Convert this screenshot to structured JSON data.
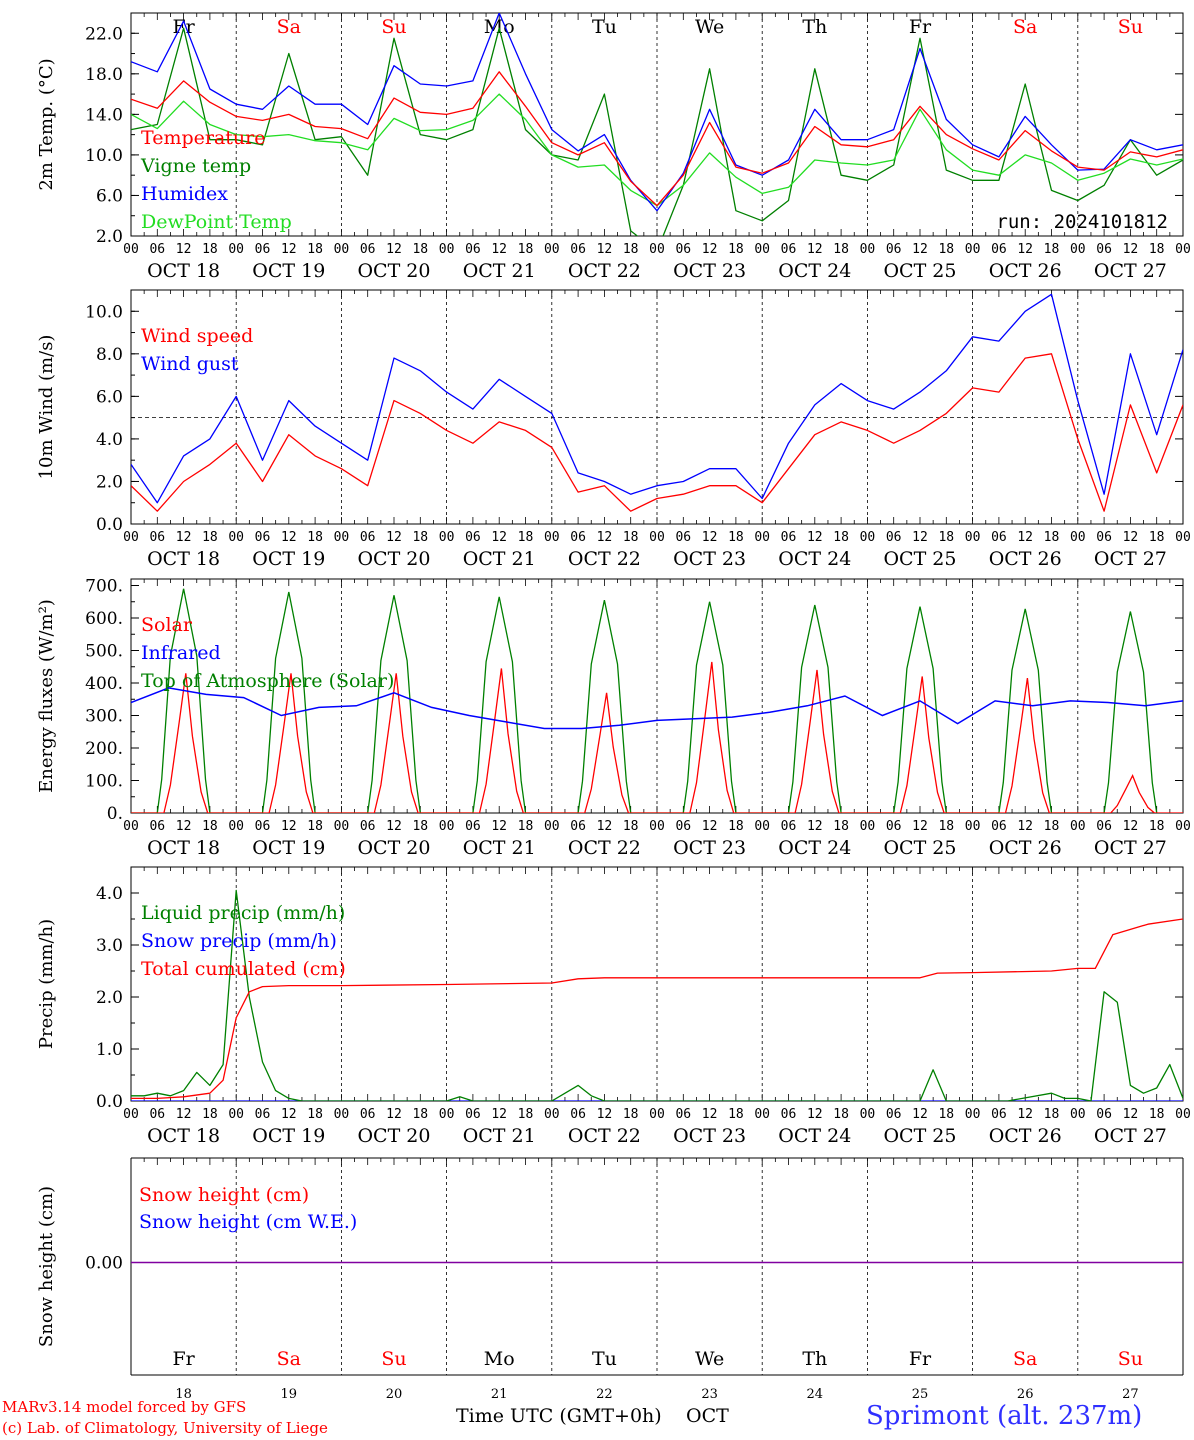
{
  "days": {
    "names": [
      "Fr",
      "Sa",
      "Su",
      "Mo",
      "Tu",
      "We",
      "Th",
      "Fr",
      "Sa",
      "Su"
    ],
    "weekend": [
      false,
      true,
      true,
      false,
      false,
      false,
      false,
      false,
      true,
      true
    ],
    "dates": [
      "OCT 18",
      "OCT 19",
      "OCT 20",
      "OCT 21",
      "OCT 22",
      "OCT 23",
      "OCT 24",
      "OCT 25",
      "OCT 26",
      "OCT 27"
    ],
    "numbers": [
      "18",
      "19",
      "20",
      "21",
      "22",
      "23",
      "24",
      "25",
      "26",
      "27"
    ],
    "hour_ticks": [
      "00",
      "06",
      "12",
      "18"
    ],
    "final_hour": "00"
  },
  "colors": {
    "red": "#ff0000",
    "green": "#008000",
    "blue": "#0000ff",
    "lightgreen": "#22dd22",
    "purple": "#8000a0"
  },
  "chart_data": [
    {
      "id": "temp",
      "type": "line",
      "ylabel": "2m Temp. (°C)",
      "ylim": [
        2.0,
        24.0
      ],
      "yticks": [
        2.0,
        6.0,
        10.0,
        14.0,
        18.0,
        22.0
      ],
      "ytick_decimals": 1,
      "x_unit": "hours since 2024-10-18 00 UTC",
      "legend": [
        "Temperature",
        "Vigne temp",
        "Humidex",
        "DewPoint Temp"
      ],
      "annotation": "run: 2024101812",
      "series": [
        {
          "name": "Temperature",
          "color": "red",
          "x": [
            0,
            6,
            12,
            18,
            24,
            30,
            36,
            42,
            48,
            54,
            60,
            66,
            72,
            78,
            84,
            90,
            96,
            102,
            108,
            114,
            120,
            126,
            132,
            138,
            144,
            150,
            156,
            162,
            168,
            174,
            180,
            186,
            192,
            198,
            204,
            210,
            216,
            222,
            228,
            234,
            240
          ],
          "y": [
            15.5,
            14.6,
            17.3,
            15.2,
            13.8,
            13.4,
            14.0,
            12.8,
            12.6,
            11.6,
            15.6,
            14.2,
            14.0,
            14.6,
            18.2,
            14.8,
            11.2,
            10.0,
            11.2,
            7.4,
            5.0,
            8.0,
            13.2,
            8.8,
            8.2,
            9.2,
            12.8,
            11.0,
            10.8,
            11.5,
            14.8,
            12.0,
            10.6,
            9.5,
            12.4,
            10.4,
            8.8,
            8.5,
            10.3,
            9.8,
            10.5
          ]
        },
        {
          "name": "Vigne temp",
          "color": "green",
          "x": [
            0,
            6,
            12,
            18,
            24,
            30,
            36,
            42,
            48,
            54,
            60,
            66,
            72,
            78,
            84,
            90,
            96,
            102,
            108,
            114,
            120,
            126,
            132,
            138,
            144,
            150,
            156,
            162,
            168,
            174,
            180,
            186,
            192,
            198,
            204,
            210,
            216,
            222,
            228,
            234,
            240
          ],
          "y": [
            12.5,
            13.0,
            22.5,
            11.5,
            11.5,
            11.0,
            20.0,
            11.5,
            11.8,
            8.0,
            21.5,
            12.0,
            11.5,
            12.5,
            22.5,
            12.5,
            10.0,
            9.5,
            16.0,
            2.5,
            0.5,
            7.0,
            18.5,
            4.5,
            3.5,
            5.5,
            18.5,
            8.0,
            7.5,
            9.0,
            21.5,
            8.5,
            7.5,
            7.5,
            17.0,
            6.5,
            5.5,
            7.0,
            11.5,
            8.0,
            9.5
          ]
        },
        {
          "name": "Humidex",
          "color": "blue",
          "x": [
            0,
            6,
            12,
            18,
            24,
            30,
            36,
            42,
            48,
            54,
            60,
            66,
            72,
            78,
            84,
            90,
            96,
            102,
            108,
            114,
            120,
            126,
            132,
            138,
            144,
            150,
            156,
            162,
            168,
            174,
            180,
            186,
            192,
            198,
            204,
            210,
            216,
            222,
            228,
            234,
            240
          ],
          "y": [
            19.2,
            18.2,
            23.2,
            16.5,
            15.0,
            14.5,
            16.8,
            15.0,
            15.0,
            13.0,
            18.8,
            17.0,
            16.8,
            17.3,
            24.0,
            18.0,
            12.5,
            10.4,
            12.0,
            7.5,
            4.5,
            8.2,
            14.5,
            9.0,
            8.0,
            9.5,
            14.5,
            11.5,
            11.5,
            12.5,
            20.5,
            13.5,
            11.0,
            9.8,
            13.8,
            11.0,
            8.5,
            8.6,
            11.5,
            10.5,
            11.0
          ]
        },
        {
          "name": "DewPoint Temp",
          "color": "lightgreen",
          "x": [
            0,
            6,
            12,
            18,
            24,
            30,
            36,
            42,
            48,
            54,
            60,
            66,
            72,
            78,
            84,
            90,
            96,
            102,
            108,
            114,
            120,
            126,
            132,
            138,
            144,
            150,
            156,
            162,
            168,
            174,
            180,
            186,
            192,
            198,
            204,
            210,
            216,
            222,
            228,
            234,
            240
          ],
          "y": [
            14.0,
            12.6,
            15.3,
            13.0,
            12.0,
            11.8,
            12.0,
            11.4,
            11.2,
            10.5,
            13.6,
            12.4,
            12.5,
            13.4,
            16.0,
            13.5,
            10.0,
            8.8,
            9.0,
            6.5,
            5.0,
            7.0,
            10.2,
            7.8,
            6.2,
            6.8,
            9.5,
            9.2,
            9.0,
            9.5,
            14.5,
            10.5,
            8.5,
            8.0,
            10.0,
            9.2,
            7.5,
            8.2,
            9.6,
            9.0,
            9.6
          ]
        }
      ]
    },
    {
      "id": "wind",
      "type": "line",
      "ylabel": "10m Wind (m/s)",
      "ylim": [
        0.0,
        11.0
      ],
      "yticks": [
        0.0,
        2.0,
        4.0,
        6.0,
        8.0,
        10.0
      ],
      "ytick_decimals": 1,
      "x_unit": "hours since 2024-10-18 00 UTC",
      "reference_line": 5.0,
      "legend": [
        "Wind speed",
        "Wind gust"
      ],
      "series": [
        {
          "name": "Wind speed",
          "color": "red",
          "x": [
            0,
            6,
            12,
            18,
            24,
            30,
            36,
            42,
            48,
            54,
            60,
            66,
            72,
            78,
            84,
            90,
            96,
            102,
            108,
            114,
            120,
            126,
            132,
            138,
            144,
            150,
            156,
            162,
            168,
            174,
            180,
            186,
            192,
            198,
            204,
            210,
            216,
            222,
            228,
            234,
            240
          ],
          "y": [
            1.8,
            0.6,
            2.0,
            2.8,
            3.8,
            2.0,
            4.2,
            3.2,
            2.6,
            1.8,
            5.8,
            5.2,
            4.4,
            3.8,
            4.8,
            4.4,
            3.6,
            1.5,
            1.8,
            0.6,
            1.2,
            1.4,
            1.8,
            1.8,
            1.0,
            2.6,
            4.2,
            4.8,
            4.4,
            3.8,
            4.4,
            5.2,
            6.4,
            6.2,
            7.8,
            8.0,
            4.0,
            0.6,
            5.6,
            2.4,
            5.6
          ]
        },
        {
          "name": "Wind gust",
          "color": "blue",
          "x": [
            0,
            6,
            12,
            18,
            24,
            30,
            36,
            42,
            48,
            54,
            60,
            66,
            72,
            78,
            84,
            90,
            96,
            102,
            108,
            114,
            120,
            126,
            132,
            138,
            144,
            150,
            156,
            162,
            168,
            174,
            180,
            186,
            192,
            198,
            204,
            210,
            216,
            222,
            228,
            234,
            240
          ],
          "y": [
            2.8,
            1.0,
            3.2,
            4.0,
            6.0,
            3.0,
            5.8,
            4.6,
            3.8,
            3.0,
            7.8,
            7.2,
            6.2,
            5.4,
            6.8,
            6.0,
            5.2,
            2.4,
            2.0,
            1.4,
            1.8,
            2.0,
            2.6,
            2.6,
            1.2,
            3.8,
            5.6,
            6.6,
            5.8,
            5.4,
            6.2,
            7.2,
            8.8,
            8.6,
            10.0,
            10.8,
            5.8,
            1.4,
            8.0,
            4.2,
            8.2
          ]
        }
      ]
    },
    {
      "id": "flux",
      "type": "line",
      "ylabel": "Energy fluxes (W/m²)",
      "ylim": [
        0,
        720
      ],
      "yticks": [
        0,
        100,
        200,
        300,
        400,
        500,
        600,
        700
      ],
      "ytick_decimals": 0,
      "ytick_suffix": ".",
      "x_unit": "hours since 2024-10-18 00 UTC",
      "legend": [
        "Solar",
        "Infrared",
        "Top of Atmosphere (Solar)"
      ],
      "toa_peaks": [
        690,
        680,
        670,
        665,
        655,
        650,
        640,
        635,
        628,
        620
      ],
      "solar_peaks": [
        430,
        430,
        430,
        445,
        370,
        465,
        440,
        420,
        415,
        115
      ],
      "infrared": [
        340,
        385,
        365,
        355,
        300,
        325,
        330,
        370,
        325,
        300,
        280,
        260,
        260,
        270,
        285,
        290,
        295,
        310,
        330,
        360,
        300,
        345,
        275,
        345,
        330,
        345,
        340,
        330,
        345
      ],
      "series": [
        {
          "name": "Solar",
          "color": "red"
        },
        {
          "name": "Infrared",
          "color": "blue"
        },
        {
          "name": "Top of Atmosphere (Solar)",
          "color": "green"
        }
      ]
    },
    {
      "id": "precip",
      "type": "line",
      "ylabel": "Precip (mm/h)",
      "ylim": [
        0.0,
        4.5
      ],
      "yticks": [
        0.0,
        1.0,
        2.0,
        3.0,
        4.0
      ],
      "ytick_decimals": 1,
      "x_unit": "hours since 2024-10-18 00 UTC",
      "legend": [
        "Liquid precip (mm/h)",
        "Snow precip (mm/h)",
        "Total cumulated (cm)"
      ],
      "series": [
        {
          "name": "Liquid precip (mm/h)",
          "color": "green",
          "x": [
            0,
            3,
            6,
            9,
            12,
            15,
            18,
            21,
            24,
            27,
            30,
            33,
            36,
            39,
            42,
            60,
            72,
            75,
            78,
            96,
            99,
            102,
            105,
            108,
            180,
            183,
            186,
            200,
            210,
            213,
            216,
            219,
            222,
            225,
            228,
            231,
            234,
            237,
            240
          ],
          "y": [
            0.1,
            0.1,
            0.15,
            0.1,
            0.2,
            0.55,
            0.3,
            0.7,
            4.05,
            2.0,
            0.75,
            0.2,
            0.05,
            0.0,
            0.0,
            0.0,
            0.0,
            0.08,
            0.0,
            0.0,
            0.15,
            0.3,
            0.1,
            0.0,
            0.0,
            0.6,
            0.0,
            0.0,
            0.15,
            0.05,
            0.05,
            0.0,
            2.1,
            1.9,
            0.3,
            0.15,
            0.25,
            0.7,
            0.05
          ]
        },
        {
          "name": "Snow precip (mm/h)",
          "color": "blue",
          "x": [
            0,
            240
          ],
          "y": [
            0,
            0
          ]
        },
        {
          "name": "Total cumulated (cm)",
          "color": "red",
          "x": [
            0,
            6,
            12,
            18,
            21,
            24,
            27,
            30,
            36,
            48,
            72,
            96,
            102,
            108,
            120,
            144,
            168,
            180,
            184,
            192,
            210,
            216,
            220,
            224,
            232,
            240
          ],
          "y": [
            0.05,
            0.05,
            0.08,
            0.15,
            0.4,
            1.6,
            2.1,
            2.2,
            2.22,
            2.22,
            2.24,
            2.27,
            2.35,
            2.37,
            2.37,
            2.37,
            2.37,
            2.37,
            2.46,
            2.47,
            2.5,
            2.55,
            2.55,
            3.2,
            3.4,
            3.5
          ]
        }
      ]
    },
    {
      "id": "snow",
      "type": "line",
      "ylabel": "Snow height (cm)",
      "ytick_label": "0.00",
      "legend": [
        "Snow height (cm)",
        "Snow height (cm W.E.)"
      ],
      "series": [
        {
          "name": "Snow height (cm)",
          "color": "red",
          "x": [
            0,
            240
          ],
          "y": [
            0,
            0
          ]
        },
        {
          "name": "Snow height (cm W.E.)",
          "color": "blue",
          "x": [
            0,
            240
          ],
          "y": [
            0,
            0
          ]
        }
      ]
    }
  ],
  "footer": {
    "model": "MARv3.14 model forced by GFS",
    "copyright": "(c) Lab. of Climatology, University of Liege",
    "xlabel": "Time UTC (GMT+0h)",
    "month": "OCT",
    "station": "Sprimont (alt. 237m)"
  }
}
